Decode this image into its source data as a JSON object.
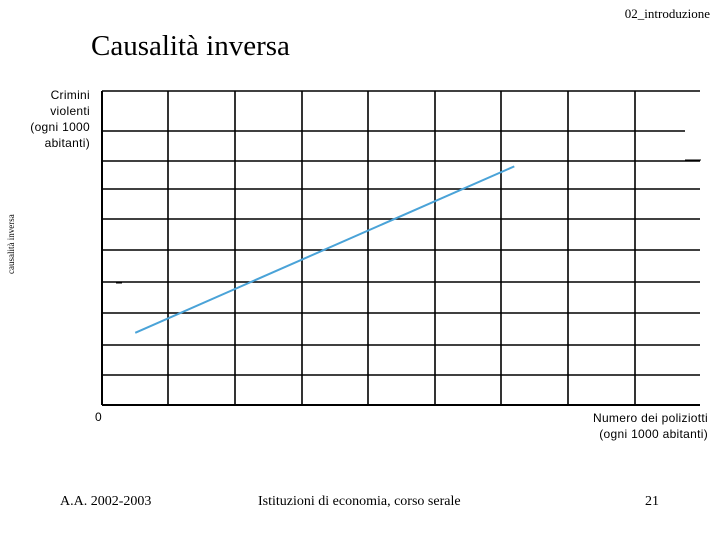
{
  "header": {
    "section": "02_introduzione"
  },
  "slide": {
    "title": "Causalità inversa",
    "side_label": "causalità inversa"
  },
  "chart": {
    "ylabel": "Crimini\nviolenti\n(ogni 1000\nabitanti)",
    "xlabel": "Numero dei poliziotti\n(ogni 1000 abitanti)",
    "origin_label": "0"
  },
  "chart_data": {
    "type": "line",
    "title": "Causalità inversa",
    "xlabel": "Numero dei poliziotti (ogni 1000 abitanti)",
    "ylabel": "Crimini violenti (ogni 1000 abitanti)",
    "grid": true,
    "series": [
      {
        "x": [
          0.5,
          6.2
        ],
        "y": [
          2.3,
          7.6
        ]
      }
    ],
    "line_color": "#4aa3d8"
  },
  "footer": {
    "left": "A.A. 2002-2003",
    "center": "Istituzioni di economia, corso serale",
    "page": "21"
  }
}
